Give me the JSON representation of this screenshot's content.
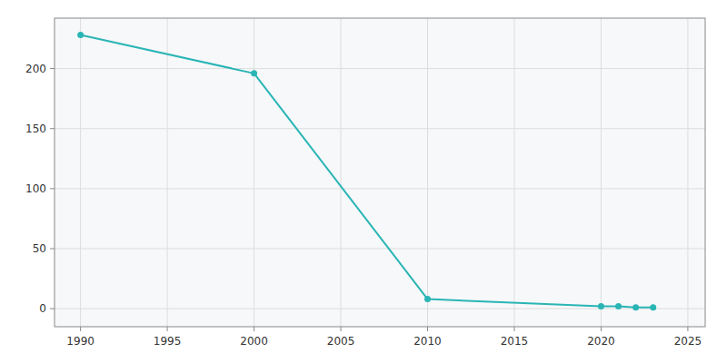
{
  "chart_data": {
    "type": "line",
    "x": [
      1990,
      2000,
      2010,
      2020,
      2021,
      2022,
      2023
    ],
    "values": [
      228,
      196,
      8,
      2,
      2,
      1,
      1
    ],
    "color": "#2ab5b5",
    "marker": "circle",
    "xlim": [
      1988.5,
      2026
    ],
    "ylim": [
      -15,
      242
    ],
    "xticks": [
      1990,
      1995,
      2000,
      2005,
      2010,
      2015,
      2020,
      2025
    ],
    "yticks": [
      0,
      50,
      100,
      150,
      200
    ],
    "grid": true
  }
}
